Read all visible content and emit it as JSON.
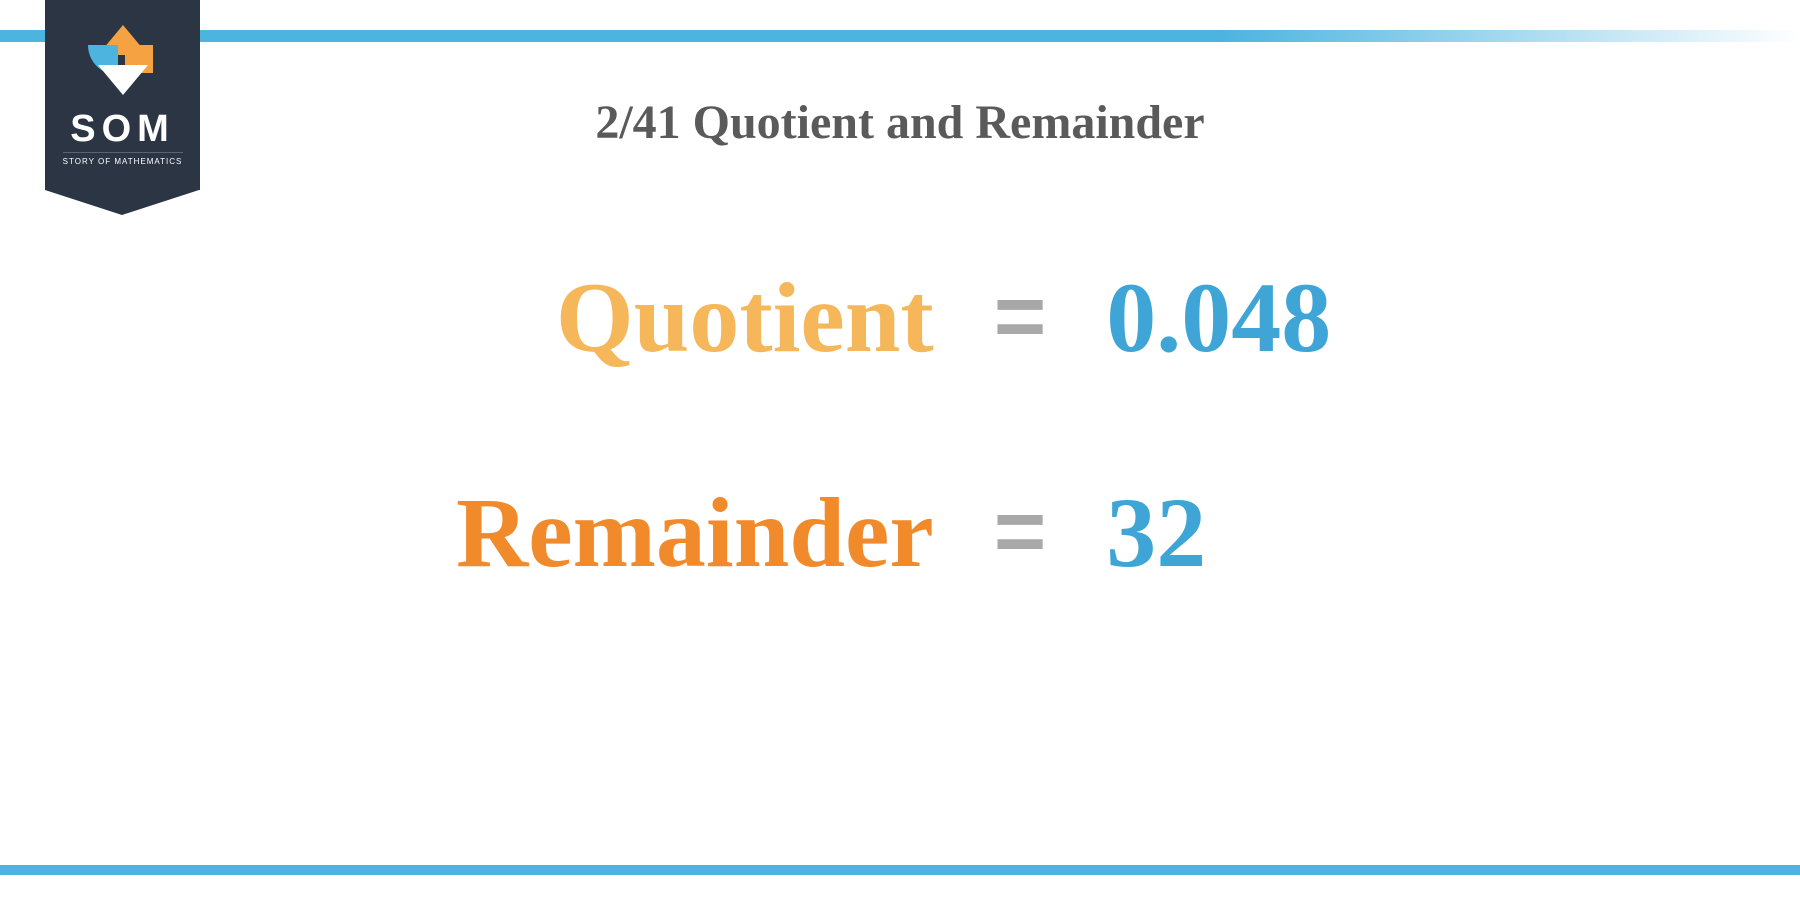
{
  "logo": {
    "text": "SOM",
    "subtext": "STORY OF MATHEMATICS"
  },
  "title": "2/41 Quotient and Remainder",
  "rows": [
    {
      "label": "Quotient",
      "label_color": "#f5b759",
      "value": "0.048"
    },
    {
      "label": "Remainder",
      "label_color": "#f08a2a",
      "value": "32"
    }
  ],
  "styling": {
    "top_bar_color": "#4db4e0",
    "top_bar_solid_width_pct": 68,
    "bottom_bar_color": "#4db4e0",
    "badge_bg": "#2b3544",
    "title_color": "#5a5a5a",
    "title_fontsize": 48,
    "label_fontsize": 100,
    "value_fontsize": 100,
    "value_color": "#3ea5d6",
    "equals_color": "#a8a8a8",
    "background_color": "#ffffff"
  }
}
